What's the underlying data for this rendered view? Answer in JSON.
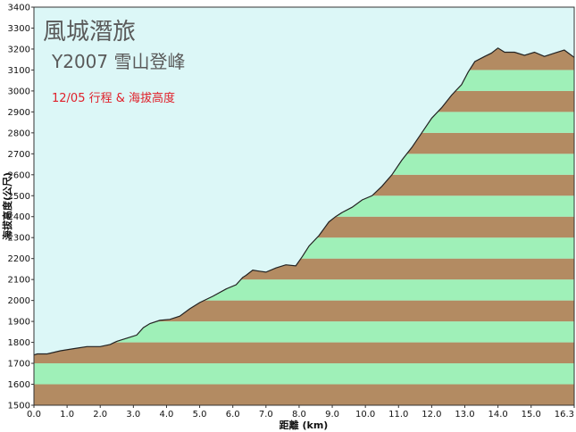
{
  "chart_data": {
    "type": "area",
    "title": "風城潛旅",
    "subtitle": "Y2007 雪山登峰",
    "annotation": "12/05 行程 & 海拔高度",
    "xlabel": "距離 (km)",
    "ylabel": "海拔高度(公尺)",
    "xlim": [
      0.0,
      16.3
    ],
    "ylim": [
      1500,
      3400
    ],
    "x_ticks": [
      "0.0",
      "1.0",
      "2.0",
      "3.0",
      "4.0",
      "5.0",
      "6.0",
      "7.0",
      "8.0",
      "9.0",
      "10.0",
      "11.0",
      "12.0",
      "13.0",
      "14.0",
      "15.0",
      "16.3"
    ],
    "y_ticks": [
      "1500",
      "1600",
      "1700",
      "1800",
      "1900",
      "2000",
      "2100",
      "2200",
      "2300",
      "2400",
      "2500",
      "2600",
      "2700",
      "2800",
      "2900",
      "3000",
      "3100",
      "3200",
      "3300",
      "3400"
    ],
    "series": [
      {
        "x": [
          0.0,
          0.1,
          0.4,
          0.8,
          1.2,
          1.6,
          2.0,
          2.3,
          2.5,
          2.8,
          3.1,
          3.3,
          3.5,
          3.8,
          4.1,
          4.4,
          4.7,
          5.0,
          5.4,
          5.8,
          6.1,
          6.3,
          6.4,
          6.6,
          6.8,
          7.0,
          7.3,
          7.6,
          7.9,
          8.1,
          8.3,
          8.6,
          8.9,
          9.1,
          9.3,
          9.6,
          9.9,
          10.2,
          10.5,
          10.8,
          11.1,
          11.4,
          11.7,
          12.0,
          12.3,
          12.6,
          12.9,
          13.1,
          13.3,
          13.6,
          13.8,
          14.0,
          14.2,
          14.5,
          14.8,
          15.1,
          15.4,
          15.7,
          16.0,
          16.3
        ],
        "values": [
          1740,
          1745,
          1745,
          1760,
          1770,
          1780,
          1780,
          1790,
          1805,
          1820,
          1835,
          1870,
          1890,
          1905,
          1910,
          1925,
          1960,
          1990,
          2020,
          2055,
          2075,
          2110,
          2120,
          2145,
          2140,
          2135,
          2155,
          2170,
          2165,
          2210,
          2260,
          2310,
          2375,
          2400,
          2420,
          2445,
          2480,
          2500,
          2545,
          2600,
          2670,
          2730,
          2800,
          2870,
          2920,
          2980,
          3030,
          3090,
          3140,
          3165,
          3180,
          3205,
          3185,
          3185,
          3170,
          3185,
          3165,
          3180,
          3195,
          3160
        ]
      }
    ],
    "band_colors": [
      "#b38b62",
      "#9ff0b8"
    ],
    "band_height": 100,
    "colors": {
      "sky": "#dcf7f7",
      "outline": "#222222",
      "title": "#5a5a5a",
      "annotation": "#e0202a"
    },
    "grid": false,
    "legend": "none"
  }
}
